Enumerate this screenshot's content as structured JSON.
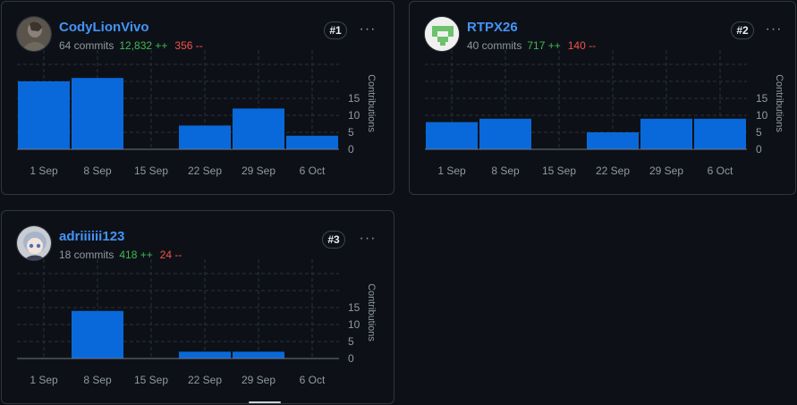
{
  "contributors": [
    {
      "username": "CodyLionVivo",
      "commits": "64 commits",
      "additions": "12,832 ++",
      "deletions": "356 --",
      "rank": "#1",
      "avatar_icon": "photo-avatar-icon",
      "chart_data": {
        "type": "bar",
        "categories": [
          "1 Sep",
          "8 Sep",
          "15 Sep",
          "22 Sep",
          "29 Sep",
          "6 Oct"
        ],
        "values": [
          20,
          21,
          0,
          7,
          12,
          4
        ],
        "ylabel": "Contributions",
        "yticks": [
          0,
          5,
          10,
          15
        ],
        "ylim": [
          0,
          25
        ],
        "color": "#0969da"
      }
    },
    {
      "username": "RTPX26",
      "commits": "40 commits",
      "additions": "717 ++",
      "deletions": "140 --",
      "rank": "#2",
      "avatar_icon": "identicon-avatar-icon",
      "chart_data": {
        "type": "bar",
        "categories": [
          "1 Sep",
          "8 Sep",
          "15 Sep",
          "22 Sep",
          "29 Sep",
          "6 Oct"
        ],
        "values": [
          8,
          9,
          0,
          5,
          9,
          9
        ],
        "ylabel": "Contributions",
        "yticks": [
          0,
          5,
          10,
          15
        ],
        "ylim": [
          0,
          25
        ],
        "color": "#0969da"
      }
    },
    {
      "username": "adriiiiii123",
      "commits": "18 commits",
      "additions": "418 ++",
      "deletions": "24 --",
      "rank": "#3",
      "avatar_icon": "anime-avatar-icon",
      "chart_data": {
        "type": "bar",
        "categories": [
          "1 Sep",
          "8 Sep",
          "15 Sep",
          "22 Sep",
          "29 Sep",
          "6 Oct"
        ],
        "values": [
          0,
          14,
          0,
          2,
          2,
          0
        ],
        "ylabel": "Contributions",
        "yticks": [
          0,
          5,
          10,
          15
        ],
        "ylim": [
          0,
          25
        ],
        "color": "#0969da"
      }
    }
  ],
  "more_options_icon": "kebab-horizontal-icon",
  "more_options_label": "···"
}
